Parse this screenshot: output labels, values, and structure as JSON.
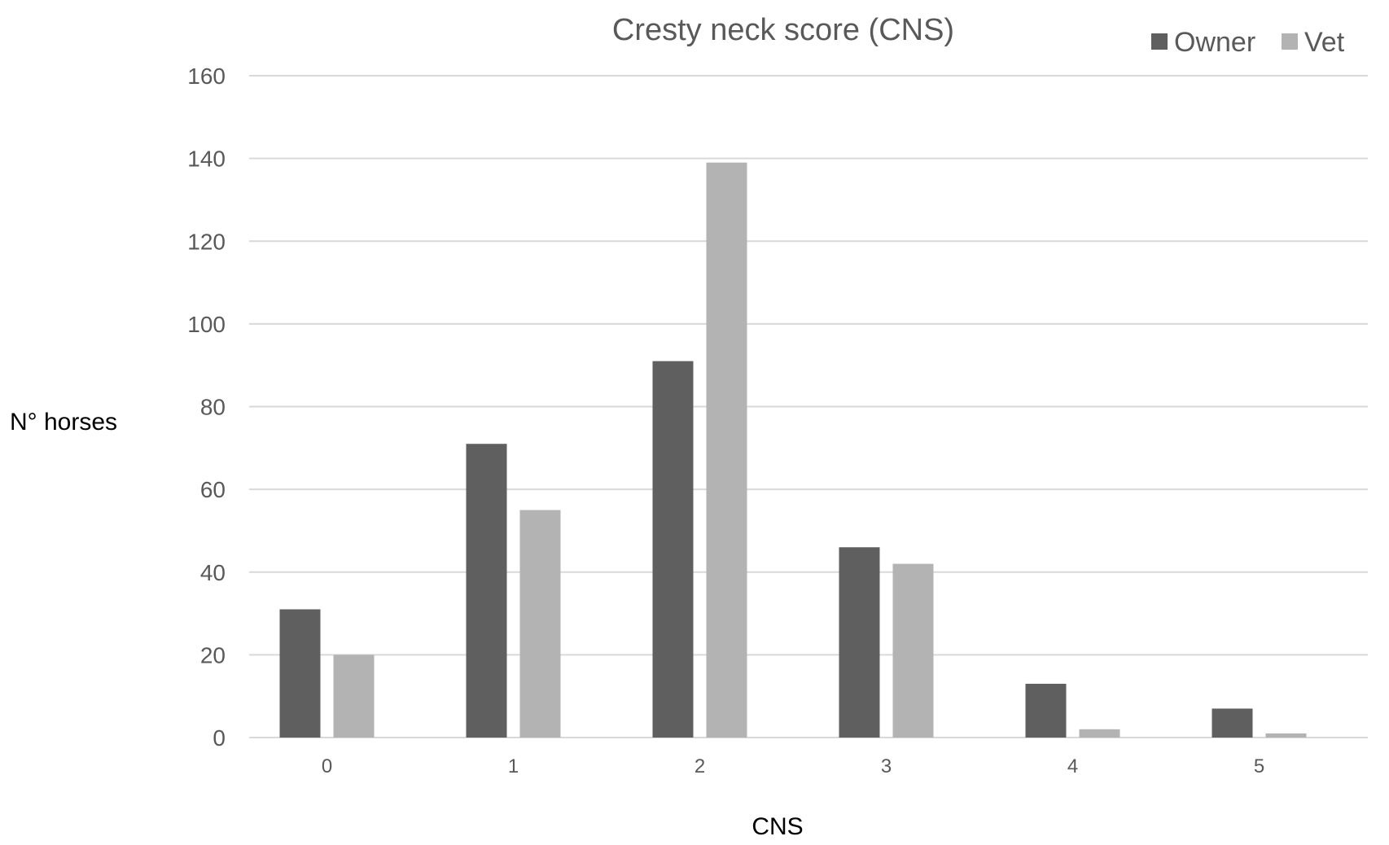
{
  "chart_data": {
    "type": "bar",
    "title": "Cresty neck score (CNS)",
    "xlabel": "CNS",
    "ylabel": "N° horses",
    "categories": [
      "0",
      "1",
      "2",
      "3",
      "4",
      "5"
    ],
    "series": [
      {
        "name": "Owner",
        "color": "#5f5f5f",
        "values": [
          31,
          71,
          91,
          46,
          13,
          7
        ]
      },
      {
        "name": "Vet",
        "color": "#b3b3b3",
        "values": [
          20,
          55,
          139,
          42,
          2,
          1
        ]
      }
    ],
    "ylim": [
      0,
      160
    ],
    "yticks": [
      0,
      20,
      40,
      60,
      80,
      100,
      120,
      140,
      160
    ],
    "grid": true,
    "legend_position": "top-right"
  }
}
